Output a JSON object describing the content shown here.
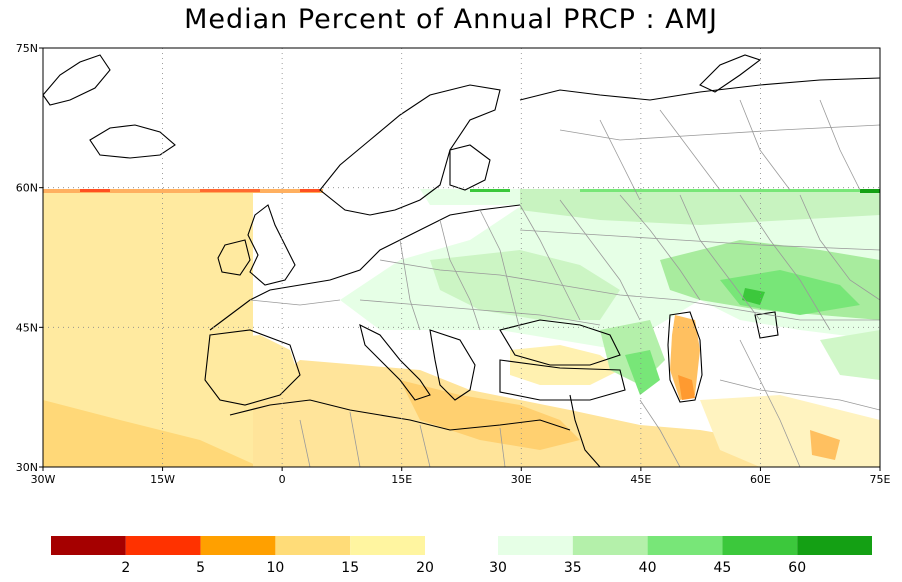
{
  "title": "Median Percent of Annual PRCP  :  AMJ",
  "map": {
    "lon_range": [
      -30,
      75
    ],
    "lat_range": [
      30,
      75
    ],
    "lon_ticks": [
      {
        "value": -30,
        "label": "30W"
      },
      {
        "value": -15,
        "label": "15W"
      },
      {
        "value": 0,
        "label": "0"
      },
      {
        "value": 15,
        "label": "15E"
      },
      {
        "value": 30,
        "label": "30E"
      },
      {
        "value": 45,
        "label": "45E"
      },
      {
        "value": 60,
        "label": "60E"
      },
      {
        "value": 75,
        "label": "75E"
      }
    ],
    "lat_ticks": [
      {
        "value": 75,
        "label": "75N"
      },
      {
        "value": 60,
        "label": "60N"
      },
      {
        "value": 45,
        "label": "45N"
      },
      {
        "value": 30,
        "label": "30N"
      }
    ],
    "grid": "dotted"
  },
  "colorbar": {
    "dry_colors": [
      "#a50000",
      "#ff3200",
      "#ffa000",
      "#ffdc78",
      "#fff5a0"
    ],
    "wet_colors": [
      "#e6ffe6",
      "#b4f0aa",
      "#78e678",
      "#3cc83c",
      "#14a014"
    ],
    "labels": [
      "2",
      "5",
      "10",
      "15",
      "20",
      "30",
      "35",
      "40",
      "45",
      "60"
    ]
  }
}
